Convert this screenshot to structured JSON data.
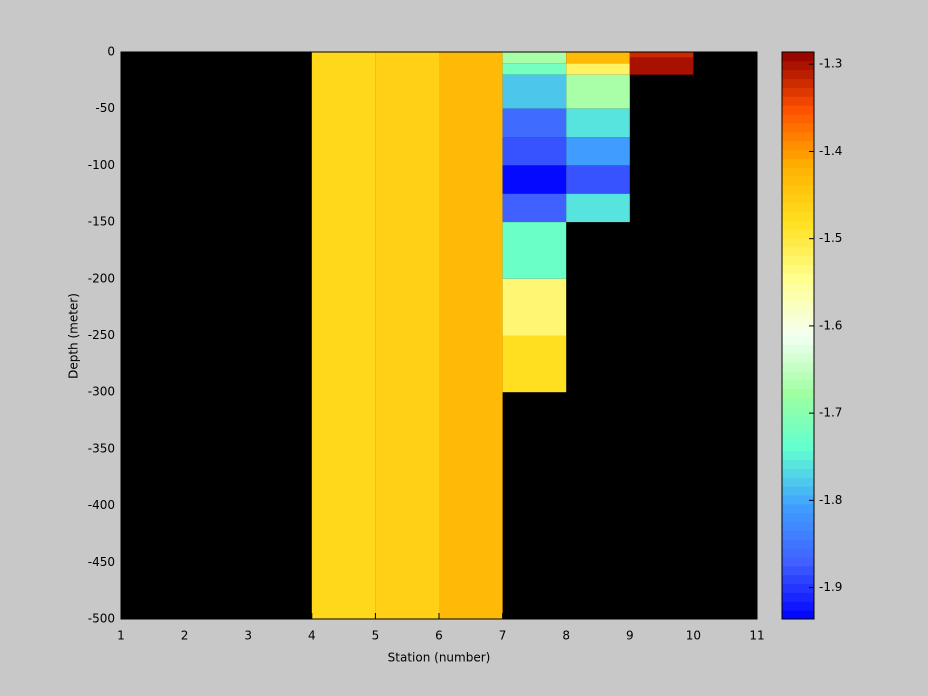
{
  "chart_data": {
    "type": "heatmap",
    "xlabel": "Station (number)",
    "ylabel": "Depth (meter)",
    "xlim": [
      1,
      11
    ],
    "xticks": [
      1,
      2,
      3,
      4,
      5,
      6,
      7,
      8,
      9,
      10,
      11
    ],
    "ylim": [
      -500,
      0
    ],
    "yticks": [
      0,
      -50,
      -100,
      -150,
      -200,
      -250,
      -300,
      -350,
      -400,
      -450,
      -500
    ],
    "background": "#000000",
    "clim": [
      -1.936,
      -1.286
    ],
    "cticks": [
      -1.3,
      -1.4,
      -1.5,
      -1.6,
      -1.7,
      -1.8,
      -1.9
    ],
    "colormap": [
      "#0000ff",
      "#4060ff",
      "#40a0ff",
      "#60ffd0",
      "#a0ffa0",
      "#f4fff4",
      "#ffff90",
      "#ffe020",
      "#ffb000",
      "#ff5000",
      "#900000"
    ],
    "cells": [
      {
        "x": [
          4,
          5
        ],
        "y": [
          0,
          -500
        ],
        "value": -1.47
      },
      {
        "x": [
          5,
          6
        ],
        "y": [
          0,
          -500
        ],
        "value": -1.46
      },
      {
        "x": [
          6,
          7
        ],
        "y": [
          0,
          -500
        ],
        "value": -1.43
      },
      {
        "x": [
          7,
          8
        ],
        "y": [
          0,
          -10
        ],
        "value": -1.67
      },
      {
        "x": [
          7,
          8
        ],
        "y": [
          -10,
          -20
        ],
        "value": -1.72
      },
      {
        "x": [
          7,
          8
        ],
        "y": [
          -20,
          -50
        ],
        "value": -1.78
      },
      {
        "x": [
          7,
          8
        ],
        "y": [
          -50,
          -75
        ],
        "value": -1.86
      },
      {
        "x": [
          7,
          8
        ],
        "y": [
          -75,
          -100
        ],
        "value": -1.88
      },
      {
        "x": [
          7,
          8
        ],
        "y": [
          -100,
          -125
        ],
        "value": -1.93
      },
      {
        "x": [
          7,
          8
        ],
        "y": [
          -125,
          -150
        ],
        "value": -1.87
      },
      {
        "x": [
          7,
          8
        ],
        "y": [
          -150,
          -200
        ],
        "value": -1.73
      },
      {
        "x": [
          7,
          8
        ],
        "y": [
          -200,
          -250
        ],
        "value": -1.53
      },
      {
        "x": [
          7,
          8
        ],
        "y": [
          -250,
          -300
        ],
        "value": -1.48
      },
      {
        "x": [
          8,
          9
        ],
        "y": [
          0,
          -10
        ],
        "value": -1.43
      },
      {
        "x": [
          8,
          9
        ],
        "y": [
          -10,
          -20
        ],
        "value": -1.52
      },
      {
        "x": [
          8,
          9
        ],
        "y": [
          -20,
          -50
        ],
        "value": -1.67
      },
      {
        "x": [
          8,
          9
        ],
        "y": [
          -50,
          -75
        ],
        "value": -1.76
      },
      {
        "x": [
          8,
          9
        ],
        "y": [
          -75,
          -100
        ],
        "value": -1.81
      },
      {
        "x": [
          8,
          9
        ],
        "y": [
          -100,
          -125
        ],
        "value": -1.88
      },
      {
        "x": [
          8,
          9
        ],
        "y": [
          -125,
          -150
        ],
        "value": -1.76
      },
      {
        "x": [
          9,
          10
        ],
        "y": [
          0,
          -5
        ],
        "value": -1.32
      },
      {
        "x": [
          9,
          10
        ],
        "y": [
          -5,
          -20
        ],
        "value": -1.3
      }
    ]
  }
}
